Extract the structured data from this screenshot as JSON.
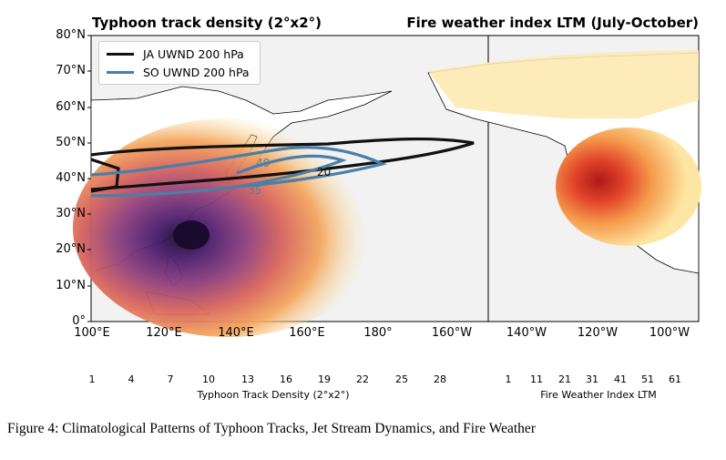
{
  "left_panel": {
    "title": "Typhoon track density (2°x2°)",
    "lat_labels": [
      "80°N",
      "70°N",
      "60°N",
      "50°N",
      "40°N",
      "30°N",
      "20°N",
      "10°N",
      "0°"
    ],
    "lon_labels": [
      "100°E",
      "120°E",
      "140°E",
      "160°E",
      "180°",
      "160°W"
    ],
    "legend": [
      {
        "label": "JA UWND 200 hPa",
        "color": "#111111"
      },
      {
        "label": "SO UWND 200 hPa",
        "color": "#4a7fa8"
      }
    ],
    "contour_labels": [
      "40",
      "35",
      "20"
    ]
  },
  "right_panel": {
    "title": "Fire weather index LTM (July-October)",
    "lon_labels": [
      "140°W",
      "120°W",
      "100°W"
    ]
  },
  "colorbars": {
    "typhoon": {
      "ticks": [
        "1",
        "4",
        "7",
        "10",
        "13",
        "16",
        "19",
        "22",
        "25",
        "28"
      ],
      "label": "Typhoon Track Density (2°x2°)"
    },
    "fire": {
      "ticks": [
        "1",
        "11",
        "21",
        "31",
        "41",
        "51",
        "61"
      ],
      "label": "Fire Weather Index LTM"
    }
  },
  "caption": "Figure 4: Climatological Patterns of Typhoon Tracks, Jet Stream Dynamics, and Fire Weather",
  "colors": {
    "land_outline": "#000000",
    "ocean": "#f2f2f2",
    "land_fill": "#ffffff",
    "typhoon_peak": "#1a0a2e",
    "fire_peak": "#c0181a"
  }
}
